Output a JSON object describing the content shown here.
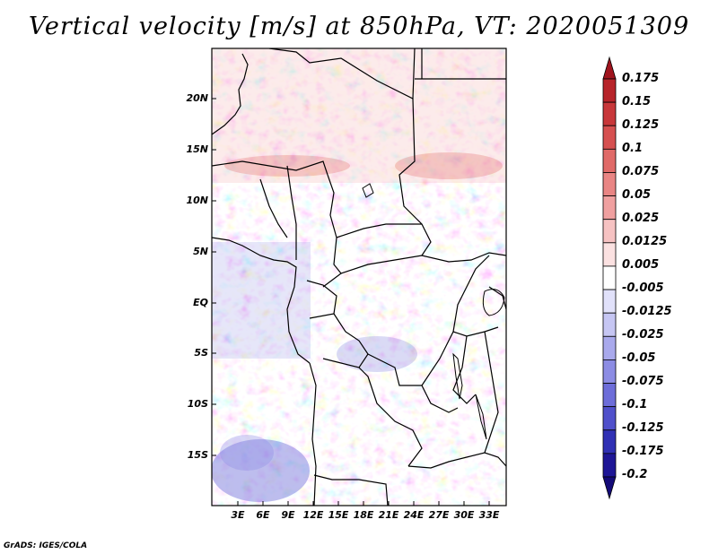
{
  "title": "Vertical velocity [m/s] at 850hPa, VT: 2020051309",
  "credit": "GrADS: IGES/COLA",
  "map": {
    "variable": "Vertical velocity",
    "units": "m/s",
    "level": "850hPa",
    "valid_time": "2020051309",
    "lat_range": [
      -20,
      25
    ],
    "lon_range": [
      0,
      35
    ],
    "lat_labels": [
      "20N",
      "15N",
      "10N",
      "5N",
      "EQ",
      "5S",
      "10S",
      "15S"
    ],
    "lon_labels": [
      "3E",
      "6E",
      "9E",
      "12E",
      "15E",
      "18E",
      "21E",
      "24E",
      "27E",
      "30E",
      "33E"
    ]
  },
  "colorbar": {
    "labels": [
      "0.175",
      "0.15",
      "0.125",
      "0.1",
      "0.075",
      "0.05",
      "0.025",
      "0.0125",
      "0.005",
      "-0.005",
      "-0.0125",
      "-0.025",
      "-0.05",
      "-0.075",
      "-0.1",
      "-0.125",
      "-0.175",
      "-0.2"
    ],
    "colors": [
      "#a0141e",
      "#b7242a",
      "#c8373a",
      "#d65050",
      "#e06a68",
      "#e98584",
      "#f0a0a0",
      "#f6c2c2",
      "#fbe1e1",
      "#ffffff",
      "#e1e1fa",
      "#c6c6f3",
      "#a9a9ec",
      "#8c8ce4",
      "#6d6dd9",
      "#5050cb",
      "#3030b4",
      "#1e1696",
      "#140a78"
    ]
  }
}
